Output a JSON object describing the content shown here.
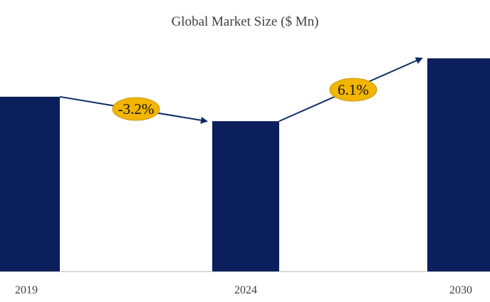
{
  "colors": {
    "bar": "#0a1f5c",
    "arrow": "#0e2a63",
    "badge": "#f2b500",
    "badge_border": "#c89a10",
    "axis": "#bfbfbf"
  },
  "chart_data": {
    "type": "bar",
    "title": "Global Market Size ($ Mn)",
    "xlabel": "",
    "ylabel": "",
    "categories": [
      "2019",
      "2024",
      "2030"
    ],
    "values": [
      100,
      86,
      122
    ],
    "ylim": [
      0,
      135
    ],
    "grid": false,
    "legend": "none",
    "annotations": [
      {
        "from": "2019",
        "to": "2024",
        "label": "-3.2%"
      },
      {
        "from": "2024",
        "to": "2030",
        "label": "6.1%"
      }
    ]
  }
}
